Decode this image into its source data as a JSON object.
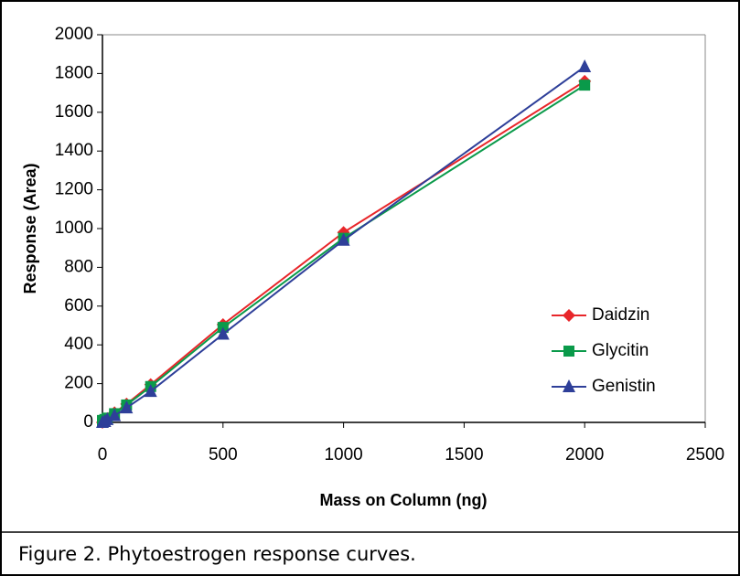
{
  "chart_data": {
    "type": "line",
    "x_label": "Mass on Column (ng)",
    "y_label": "Response (Area)",
    "caption": "Figure 2. Phytoestrogen response curves.",
    "x": [
      0,
      10,
      20,
      50,
      100,
      200,
      500,
      1000,
      2000
    ],
    "series": [
      {
        "name": "Daidzin",
        "color": "#e8262a",
        "marker": "diamond",
        "values": [
          0,
          10,
          20,
          50,
          95,
          195,
          505,
          980,
          1760
        ]
      },
      {
        "name": "Glycitin",
        "color": "#0a9a4a",
        "marker": "square",
        "values": [
          10,
          15,
          22,
          45,
          90,
          185,
          490,
          950,
          1740
        ]
      },
      {
        "name": "Genistin",
        "color": "#2e3f99",
        "marker": "triangle",
        "values": [
          0,
          5,
          15,
          35,
          75,
          160,
          455,
          940,
          1835
        ]
      }
    ],
    "xlim": [
      0,
      2500
    ],
    "xticks": [
      0,
      500,
      1000,
      1500,
      2000,
      2500
    ],
    "ylim": [
      0,
      2000
    ],
    "yticks": [
      0,
      200,
      400,
      600,
      800,
      1000,
      1200,
      1400,
      1600,
      1800,
      2000
    ],
    "legend": "right"
  }
}
